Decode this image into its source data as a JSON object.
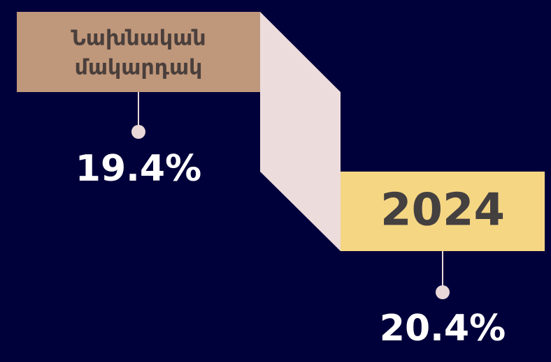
{
  "steps": [
    {
      "label_lines": [
        "Նախնական",
        "մակարդակ"
      ],
      "value": "19.4%"
    },
    {
      "label_lines": [
        "2024"
      ],
      "value": "20.4%"
    }
  ]
}
